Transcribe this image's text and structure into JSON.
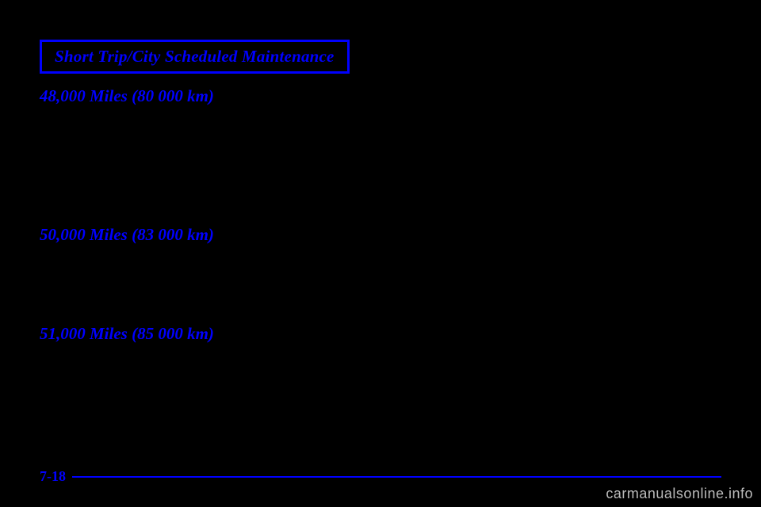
{
  "header": {
    "title": "Short Trip/City Scheduled Maintenance"
  },
  "sections": {
    "m48000": "48,000 Miles (80 000 km)",
    "m50000": "50,000 Miles (83 000 km)",
    "m51000": "51,000 Miles (85 000 km)"
  },
  "footer": {
    "page": "7-18"
  },
  "watermark": "carmanualsonline.info"
}
